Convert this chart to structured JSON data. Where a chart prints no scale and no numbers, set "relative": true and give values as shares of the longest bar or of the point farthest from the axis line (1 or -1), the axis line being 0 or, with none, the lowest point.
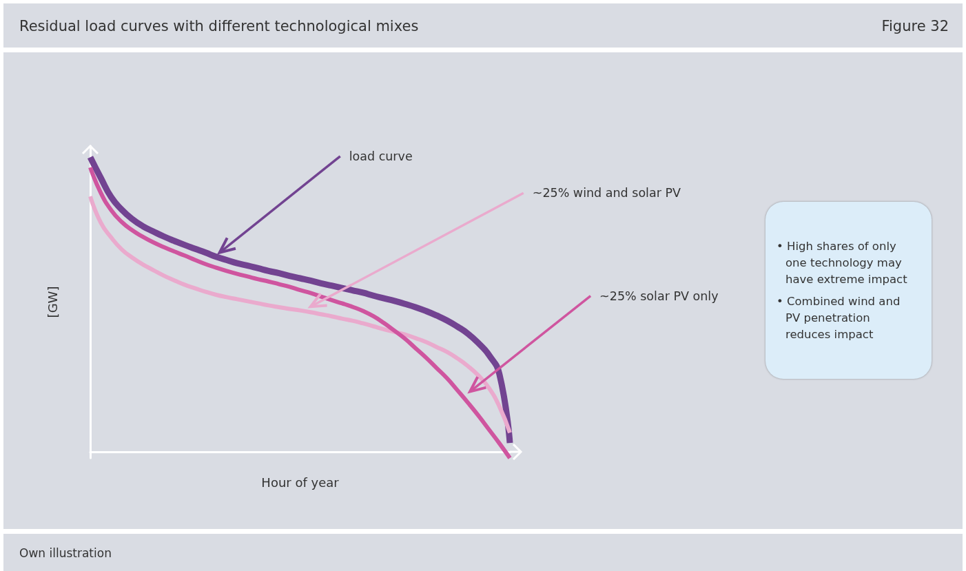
{
  "chart_data": {
    "type": "line",
    "title": "Residual load curves with different technological mixes",
    "xlabel": "Hour of year",
    "ylabel": "[GW]",
    "relative": true,
    "marker": "none",
    "line_style": "solid",
    "annotations": [
      "Figure 32",
      "• High shares of only one technology may have extreme impact",
      "• Combined wind and PV penetration reduces impact",
      "Own illustration"
    ],
    "categories": [
      null,
      null,
      null,
      null,
      null,
      null,
      null,
      null,
      null,
      null,
      null,
      null,
      null,
      null,
      null,
      null,
      null,
      null,
      null,
      null,
      null,
      null,
      null,
      null,
      null,
      null,
      null,
      null,
      null,
      null,
      null,
      null,
      null,
      null,
      null,
      null,
      null,
      null,
      null,
      null,
      null
    ],
    "series": [
      {
        "name": "load curve",
        "color": "#724391",
        "values": [
          1.0,
          0.93,
          0.864,
          0.822,
          0.79,
          0.766,
          0.748,
          0.731,
          0.716,
          0.702,
          0.689,
          0.676,
          0.662,
          0.651,
          0.64,
          0.632,
          0.623,
          0.614,
          0.606,
          0.597,
          0.589,
          0.581,
          0.572,
          0.564,
          0.556,
          0.548,
          0.54,
          0.53,
          0.521,
          0.512,
          0.502,
          0.491,
          0.478,
          0.463,
          0.446,
          0.425,
          0.401,
          0.369,
          0.329,
          0.264,
          0.03
        ]
      },
      {
        "name": "~25% wind and solar PV",
        "color": "#eaaacd",
        "values": [
          0.867,
          0.778,
          0.727,
          0.687,
          0.659,
          0.636,
          0.617,
          0.598,
          0.582,
          0.567,
          0.555,
          0.543,
          0.533,
          0.525,
          0.518,
          0.511,
          0.504,
          0.497,
          0.491,
          0.485,
          0.48,
          0.474,
          0.467,
          0.46,
          0.452,
          0.445,
          0.436,
          0.426,
          0.416,
          0.407,
          0.398,
          0.386,
          0.373,
          0.356,
          0.339,
          0.317,
          0.291,
          0.259,
          0.217,
          0.154,
          0.065
        ]
      },
      {
        "name": "~25% solar PV only",
        "color": "#cf559f",
        "values": [
          0.965,
          0.879,
          0.82,
          0.78,
          0.752,
          0.73,
          0.711,
          0.695,
          0.68,
          0.666,
          0.651,
          0.637,
          0.625,
          0.614,
          0.604,
          0.595,
          0.586,
          0.578,
          0.569,
          0.56,
          0.549,
          0.539,
          0.527,
          0.515,
          0.504,
          0.492,
          0.478,
          0.46,
          0.437,
          0.411,
          0.384,
          0.352,
          0.32,
          0.285,
          0.25,
          0.209,
          0.167,
          0.123,
          0.076,
          0.029,
          -0.021
        ]
      }
    ]
  }
}
